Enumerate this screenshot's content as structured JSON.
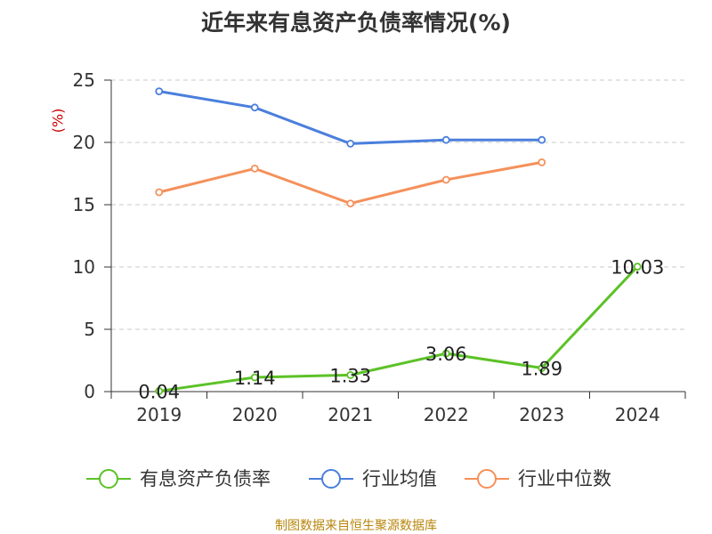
{
  "chart_data": {
    "type": "line",
    "title": "近年来有息资产负债率情况(%)",
    "unit_label": "(%)",
    "categories": [
      "2019",
      "2020",
      "2021",
      "2022",
      "2023",
      "2024"
    ],
    "ylim": [
      0,
      25
    ],
    "yticks": [
      0,
      5,
      10,
      15,
      20,
      25
    ],
    "grid": true,
    "legend_position": "bottom",
    "series": [
      {
        "name": "有息资产负债率",
        "color": "#5cc227",
        "values": [
          0.04,
          1.14,
          1.33,
          3.06,
          1.89,
          10.03
        ],
        "labels": [
          "0.04",
          "1.14",
          "1.33",
          "3.06",
          "1.89",
          "10.03"
        ]
      },
      {
        "name": "行业均值",
        "color": "#4a7fdc",
        "values": [
          24.1,
          22.8,
          19.9,
          20.2,
          20.2,
          null
        ]
      },
      {
        "name": "行业中位数",
        "color": "#f5905a",
        "values": [
          16.0,
          17.9,
          15.1,
          17.0,
          18.4,
          null
        ]
      }
    ]
  },
  "source": "制图数据来自恒生聚源数据库"
}
